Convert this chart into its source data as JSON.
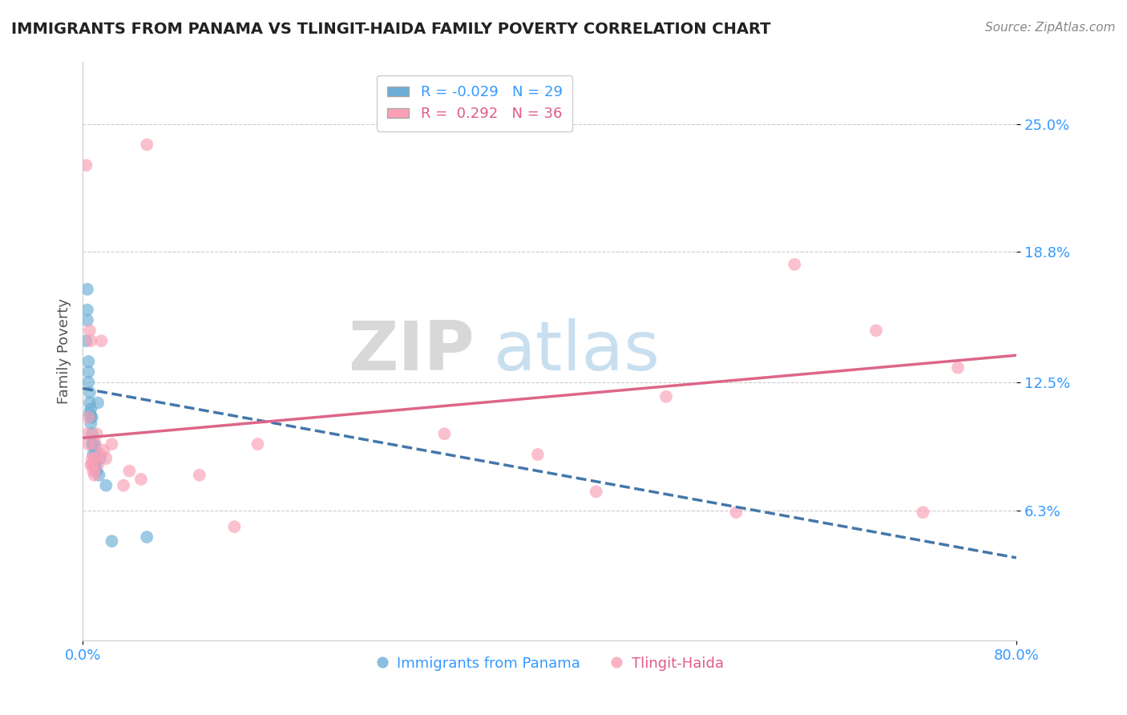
{
  "title": "IMMIGRANTS FROM PANAMA VS TLINGIT-HAIDA FAMILY POVERTY CORRELATION CHART",
  "source": "Source: ZipAtlas.com",
  "xlabel_blue": "Immigrants from Panama",
  "xlabel_pink": "Tlingit-Haida",
  "ylabel": "Family Poverty",
  "r_blue": -0.029,
  "n_blue": 29,
  "r_pink": 0.292,
  "n_pink": 36,
  "xlim": [
    0.0,
    0.8
  ],
  "ylim": [
    0.0,
    0.28
  ],
  "yticks": [
    0.063,
    0.125,
    0.188,
    0.25
  ],
  "ytick_labels": [
    "6.3%",
    "12.5%",
    "18.8%",
    "25.0%"
  ],
  "xticks": [
    0.0,
    0.8
  ],
  "xtick_labels": [
    "0.0%",
    "80.0%"
  ],
  "blue_color": "#6baed6",
  "pink_color": "#fa9fb5",
  "blue_line_color": "#4477aa",
  "pink_line_color": "#dd6688",
  "background_color": "#ffffff",
  "blue_points_x": [
    0.003,
    0.004,
    0.004,
    0.004,
    0.005,
    0.005,
    0.005,
    0.006,
    0.006,
    0.006,
    0.007,
    0.007,
    0.007,
    0.008,
    0.008,
    0.008,
    0.009,
    0.009,
    0.01,
    0.01,
    0.011,
    0.011,
    0.012,
    0.013,
    0.014,
    0.015,
    0.02,
    0.025,
    0.055
  ],
  "blue_points_y": [
    0.145,
    0.155,
    0.17,
    0.16,
    0.125,
    0.13,
    0.135,
    0.11,
    0.115,
    0.12,
    0.105,
    0.108,
    0.112,
    0.095,
    0.1,
    0.108,
    0.09,
    0.095,
    0.085,
    0.095,
    0.085,
    0.092,
    0.082,
    0.115,
    0.08,
    0.088,
    0.075,
    0.048,
    0.05
  ],
  "pink_points_x": [
    0.003,
    0.004,
    0.005,
    0.005,
    0.006,
    0.007,
    0.007,
    0.008,
    0.008,
    0.009,
    0.01,
    0.01,
    0.011,
    0.012,
    0.013,
    0.015,
    0.016,
    0.018,
    0.02,
    0.025,
    0.035,
    0.04,
    0.05,
    0.055,
    0.1,
    0.13,
    0.15,
    0.31,
    0.39,
    0.44,
    0.5,
    0.56,
    0.61,
    0.68,
    0.72,
    0.75
  ],
  "pink_points_y": [
    0.23,
    0.1,
    0.108,
    0.095,
    0.15,
    0.145,
    0.085,
    0.085,
    0.088,
    0.082,
    0.08,
    0.088,
    0.095,
    0.1,
    0.085,
    0.09,
    0.145,
    0.092,
    0.088,
    0.095,
    0.075,
    0.082,
    0.078,
    0.24,
    0.08,
    0.055,
    0.095,
    0.1,
    0.09,
    0.072,
    0.118,
    0.062,
    0.182,
    0.15,
    0.062,
    0.132
  ],
  "blue_line_x0": 0.0,
  "blue_line_y0": 0.122,
  "blue_line_x1": 0.8,
  "blue_line_y1": 0.04,
  "pink_line_x0": 0.0,
  "pink_line_y0": 0.098,
  "pink_line_x1": 0.8,
  "pink_line_y1": 0.138
}
